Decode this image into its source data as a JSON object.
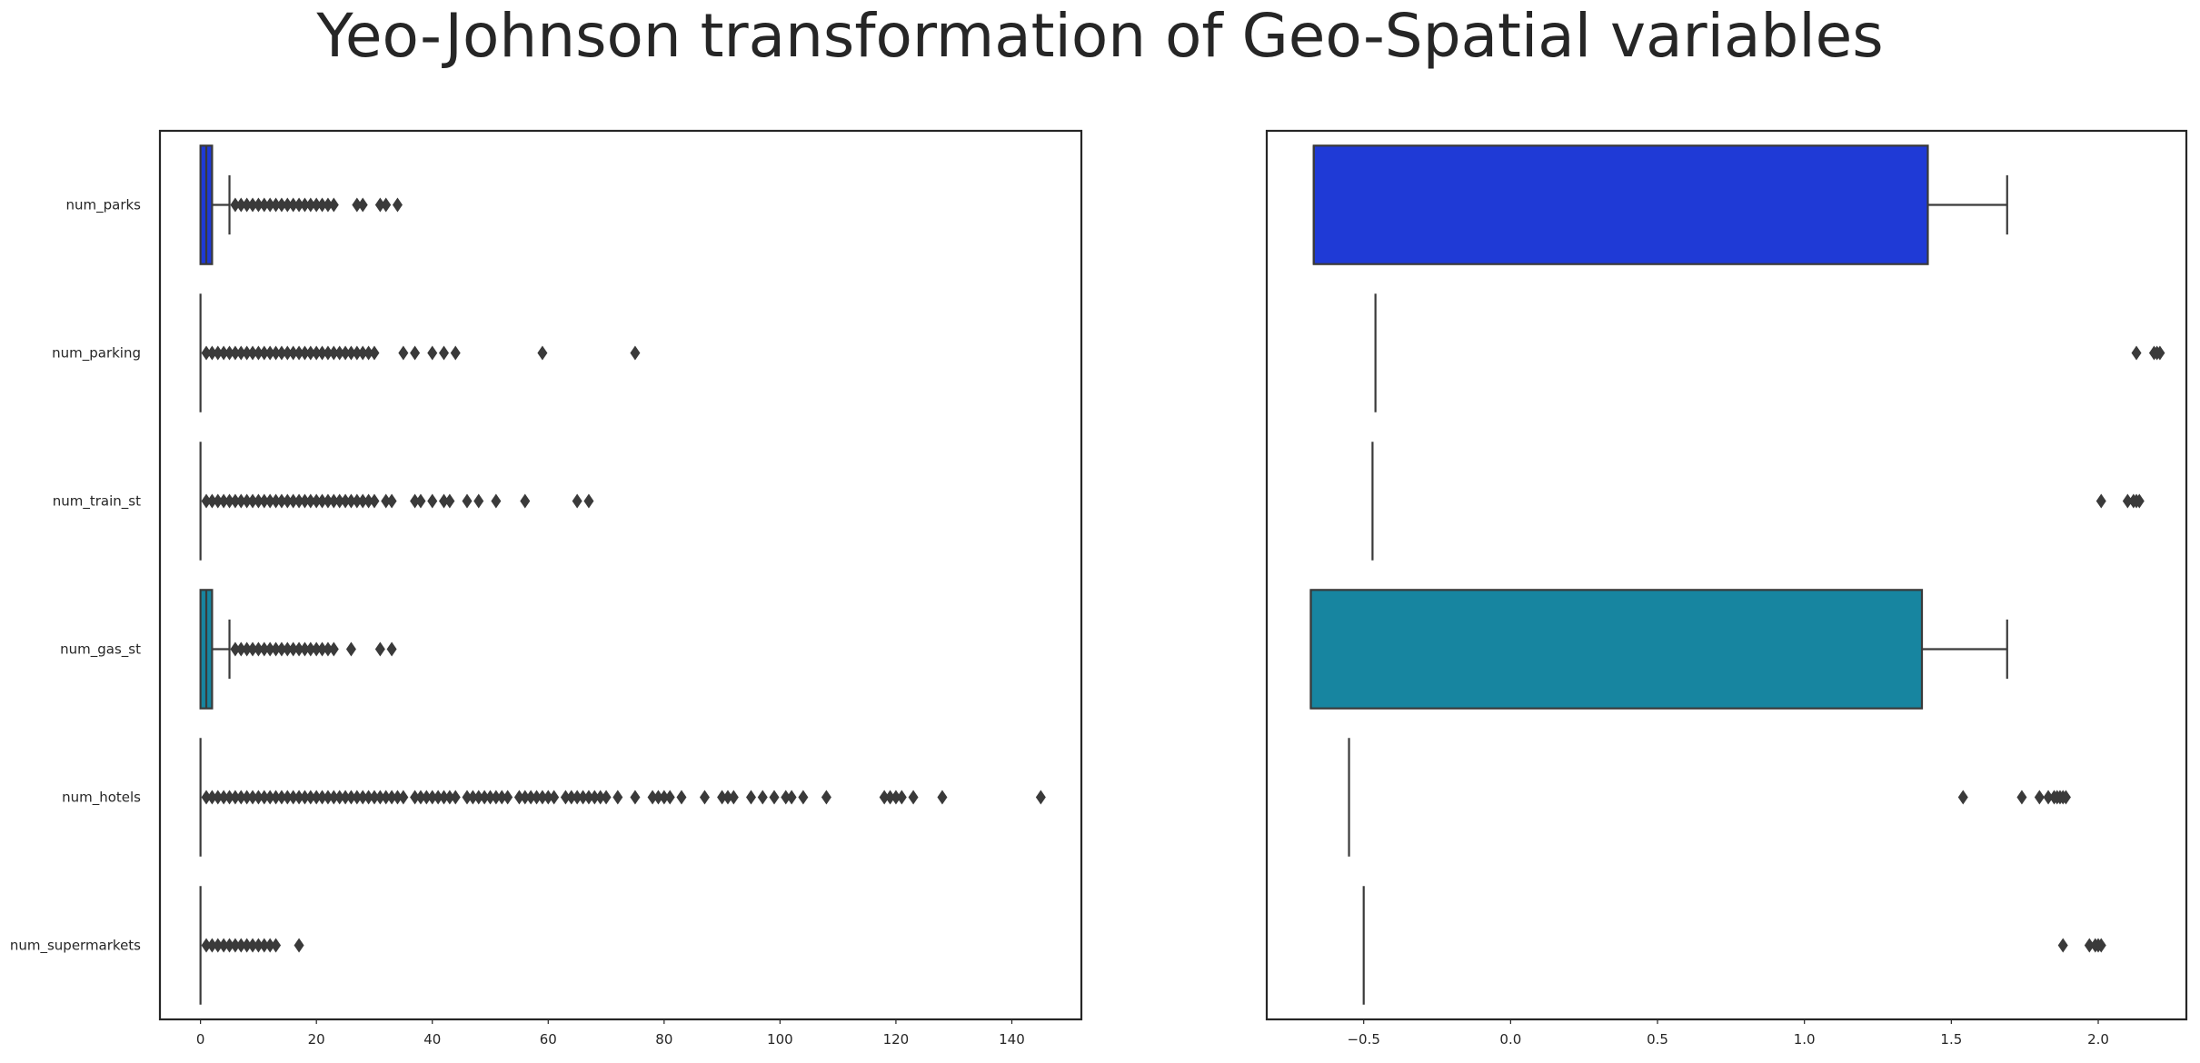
{
  "suptitle": "Yeo-Johnson transformation of Geo-Spatial variables",
  "chart_data": [
    {
      "type": "boxplot",
      "orientation": "horizontal",
      "title": "",
      "xlabel": "",
      "ylabel": "",
      "xlim": [
        -7,
        152
      ],
      "xticks": [
        0,
        20,
        40,
        60,
        80,
        100,
        120,
        140
      ],
      "grid": false,
      "categories": [
        "num_parks",
        "num_parking",
        "num_train_st",
        "num_gas_st",
        "num_hotels",
        "num_supermarkets"
      ],
      "series": [
        {
          "category": "num_parks",
          "q1": 0,
          "median": 1,
          "q3": 2,
          "whisker_low": 0,
          "whisker_high": 5,
          "color": "#1f3ad6",
          "outliers": [
            6,
            7,
            8,
            9,
            10,
            11,
            12,
            13,
            14,
            15,
            16,
            17,
            18,
            19,
            20,
            21,
            22,
            23,
            27,
            28,
            31,
            32,
            34
          ]
        },
        {
          "category": "num_parking",
          "q1": 0,
          "median": 0,
          "q3": 0,
          "whisker_low": 0,
          "whisker_high": 0,
          "color": "#1f3ad6",
          "outliers": [
            1,
            2,
            3,
            4,
            5,
            6,
            7,
            8,
            9,
            10,
            11,
            12,
            13,
            14,
            15,
            16,
            17,
            18,
            19,
            20,
            21,
            22,
            23,
            24,
            25,
            26,
            27,
            28,
            29,
            30,
            35,
            37,
            40,
            42,
            44,
            59,
            75
          ]
        },
        {
          "category": "num_train_st",
          "q1": 0,
          "median": 0,
          "q3": 0,
          "whisker_low": 0,
          "whisker_high": 0,
          "color": "#1f3ad6",
          "outliers": [
            1,
            2,
            3,
            4,
            5,
            6,
            7,
            8,
            9,
            10,
            11,
            12,
            13,
            14,
            15,
            16,
            17,
            18,
            19,
            20,
            21,
            22,
            23,
            24,
            25,
            26,
            27,
            28,
            29,
            30,
            32,
            33,
            37,
            38,
            40,
            42,
            43,
            46,
            48,
            51,
            56,
            65,
            67
          ]
        },
        {
          "category": "num_gas_st",
          "q1": 0,
          "median": 1,
          "q3": 2,
          "whisker_low": 0,
          "whisker_high": 5,
          "color": "#1785a0",
          "outliers": [
            6,
            7,
            8,
            9,
            10,
            11,
            12,
            13,
            14,
            15,
            16,
            17,
            18,
            19,
            20,
            21,
            22,
            23,
            26,
            31,
            33
          ]
        },
        {
          "category": "num_hotels",
          "q1": 0,
          "median": 0,
          "q3": 0,
          "whisker_low": 0,
          "whisker_high": 0,
          "color": "#1785a0",
          "outliers": [
            1,
            2,
            3,
            4,
            5,
            6,
            7,
            8,
            9,
            10,
            11,
            12,
            13,
            14,
            15,
            16,
            17,
            18,
            19,
            20,
            21,
            22,
            23,
            24,
            25,
            26,
            27,
            28,
            29,
            30,
            31,
            32,
            33,
            34,
            35,
            37,
            38,
            39,
            40,
            41,
            42,
            43,
            44,
            46,
            47,
            48,
            49,
            50,
            51,
            52,
            53,
            55,
            56,
            57,
            58,
            59,
            60,
            61,
            63,
            64,
            65,
            66,
            67,
            68,
            69,
            70,
            72,
            75,
            78,
            79,
            80,
            81,
            83,
            87,
            90,
            91,
            92,
            95,
            97,
            99,
            101,
            102,
            104,
            108,
            118,
            119,
            120,
            121,
            123,
            128,
            145
          ]
        },
        {
          "category": "num_supermarkets",
          "q1": 0,
          "median": 0,
          "q3": 0,
          "whisker_low": 0,
          "whisker_high": 0,
          "color": "#1785a0",
          "outliers": [
            1,
            2,
            3,
            4,
            5,
            6,
            7,
            8,
            9,
            10,
            11,
            12,
            13,
            17
          ]
        }
      ]
    },
    {
      "type": "boxplot",
      "orientation": "horizontal",
      "title": "",
      "xlabel": "",
      "ylabel": "",
      "xlim": [
        -0.83,
        2.3
      ],
      "xticks": [
        -0.5,
        0.0,
        0.5,
        1.0,
        1.5,
        2.0
      ],
      "xtick_labels": [
        "−0.5",
        "0.0",
        "0.5",
        "1.0",
        "1.5",
        "2.0"
      ],
      "grid": false,
      "categories": [
        "num_parks",
        "num_parking",
        "num_train_st",
        "num_gas_st",
        "num_hotels",
        "num_supermarkets"
      ],
      "series": [
        {
          "category": "num_parks",
          "q1": -0.67,
          "median": -0.67,
          "q3": 1.42,
          "whisker_low": -0.67,
          "whisker_high": 1.69,
          "color": "#1f3ad6",
          "outliers": []
        },
        {
          "category": "num_parking",
          "q1": -0.46,
          "median": -0.46,
          "q3": -0.46,
          "whisker_low": -0.46,
          "whisker_high": -0.46,
          "color": "#1f3ad6",
          "outliers": [
            2.13,
            2.19,
            2.2,
            2.21
          ]
        },
        {
          "category": "num_train_st",
          "q1": -0.47,
          "median": -0.47,
          "q3": -0.47,
          "whisker_low": -0.47,
          "whisker_high": -0.47,
          "color": "#1f3ad6",
          "outliers": [
            2.01,
            2.1,
            2.12,
            2.13,
            2.14
          ]
        },
        {
          "category": "num_gas_st",
          "q1": -0.68,
          "median": -0.68,
          "q3": 1.4,
          "whisker_low": -0.68,
          "whisker_high": 1.69,
          "color": "#1785a0",
          "outliers": []
        },
        {
          "category": "num_hotels",
          "q1": -0.55,
          "median": -0.55,
          "q3": -0.55,
          "whisker_low": -0.55,
          "whisker_high": -0.55,
          "color": "#1785a0",
          "outliers": [
            1.54,
            1.74,
            1.8,
            1.83,
            1.85,
            1.86,
            1.87,
            1.88,
            1.89
          ]
        },
        {
          "category": "num_supermarkets",
          "q1": -0.5,
          "median": -0.5,
          "q3": -0.5,
          "whisker_low": -0.5,
          "whisker_high": -0.5,
          "color": "#1785a0",
          "outliers": [
            1.88,
            1.97,
            1.99,
            2.0,
            2.01
          ]
        }
      ]
    }
  ]
}
